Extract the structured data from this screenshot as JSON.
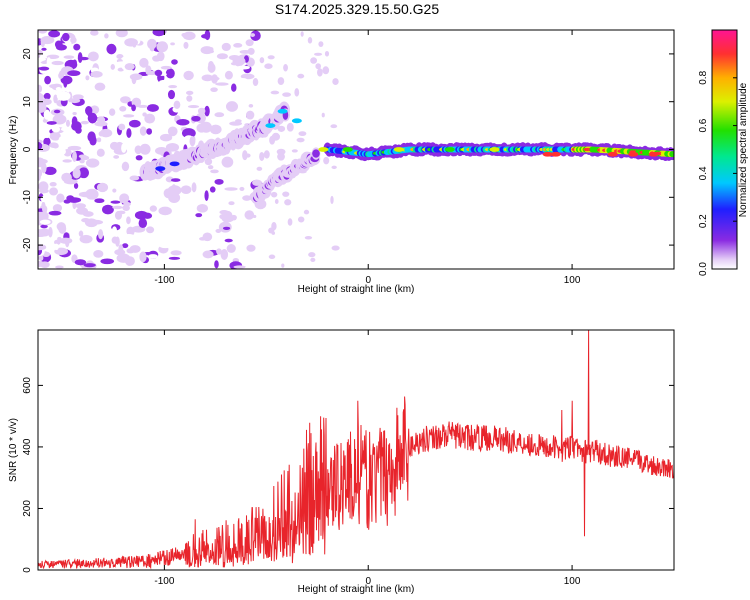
{
  "title": "S174.2025.329.15.50.G25",
  "chart_data": [
    {
      "type": "heatmap",
      "xlabel": "Height of straight line (km)",
      "ylabel": "Frequency (Hz)",
      "xlim": [
        -162,
        150
      ],
      "ylim": [
        -25,
        25
      ],
      "x_ticks": [
        -100,
        0,
        100
      ],
      "y_ticks": [
        -20,
        -10,
        0,
        10,
        20
      ],
      "colorbar": {
        "label": "Normalized spectral amplitude",
        "range": [
          0.0,
          1.0
        ],
        "ticks": [
          0.0,
          0.2,
          0.4,
          0.6,
          0.8
        ],
        "tick_labels": [
          "0.0",
          "0.2",
          "0.4",
          "0.6",
          "0.8"
        ]
      },
      "ridge_segments": [
        {
          "name": "rising",
          "points": [
            [
              -110,
              -5
            ],
            [
              -90,
              -2
            ],
            [
              -70,
              1
            ],
            [
              -50,
              5
            ],
            [
              -40,
              8
            ]
          ]
        },
        {
          "name": "descending",
          "points": [
            [
              -55,
              -10
            ],
            [
              -45,
              -6
            ],
            [
              -35,
              -4
            ],
            [
              -25,
              -1
            ]
          ]
        },
        {
          "name": "flat",
          "points": [
            [
              -20,
              0
            ],
            [
              0,
              -1
            ],
            [
              20,
              0
            ],
            [
              60,
              0
            ],
            [
              90,
              0
            ],
            [
              110,
              0
            ],
            [
              150,
              -1
            ]
          ]
        }
      ]
    },
    {
      "type": "line",
      "xlabel": "Height of straight line (km)",
      "ylabel": "SNR (10 * v/v)",
      "xlim": [
        -162,
        150
      ],
      "ylim": [
        0,
        780
      ],
      "x_ticks": [
        -100,
        0,
        100
      ],
      "y_ticks": [
        0,
        200,
        400,
        600
      ],
      "series": [
        {
          "name": "SNR",
          "color": "#e8242b",
          "x": [
            -162,
            -140,
            -120,
            -110,
            -100,
            -90,
            -80,
            -70,
            -60,
            -50,
            -40,
            -35,
            -30,
            -25,
            -20,
            -15,
            -10,
            -5,
            0,
            5,
            10,
            15,
            20,
            25,
            30,
            40,
            50,
            60,
            70,
            80,
            85,
            90,
            95,
            100,
            105,
            108,
            110,
            115,
            120,
            130,
            140,
            150
          ],
          "values": [
            20,
            25,
            30,
            35,
            45,
            60,
            70,
            85,
            100,
            130,
            180,
            220,
            250,
            260,
            270,
            280,
            300,
            310,
            290,
            300,
            320,
            360,
            400,
            420,
            430,
            440,
            430,
            430,
            420,
            410,
            400,
            400,
            390,
            400,
            390,
            380,
            390,
            380,
            370,
            360,
            340,
            330
          ]
        }
      ],
      "spikes": [
        [
          -85,
          165
        ],
        [
          -5,
          550
        ],
        [
          6,
          380
        ],
        [
          95,
          520
        ],
        [
          100,
          550
        ],
        [
          106,
          110
        ],
        [
          108,
          780
        ]
      ]
    }
  ]
}
